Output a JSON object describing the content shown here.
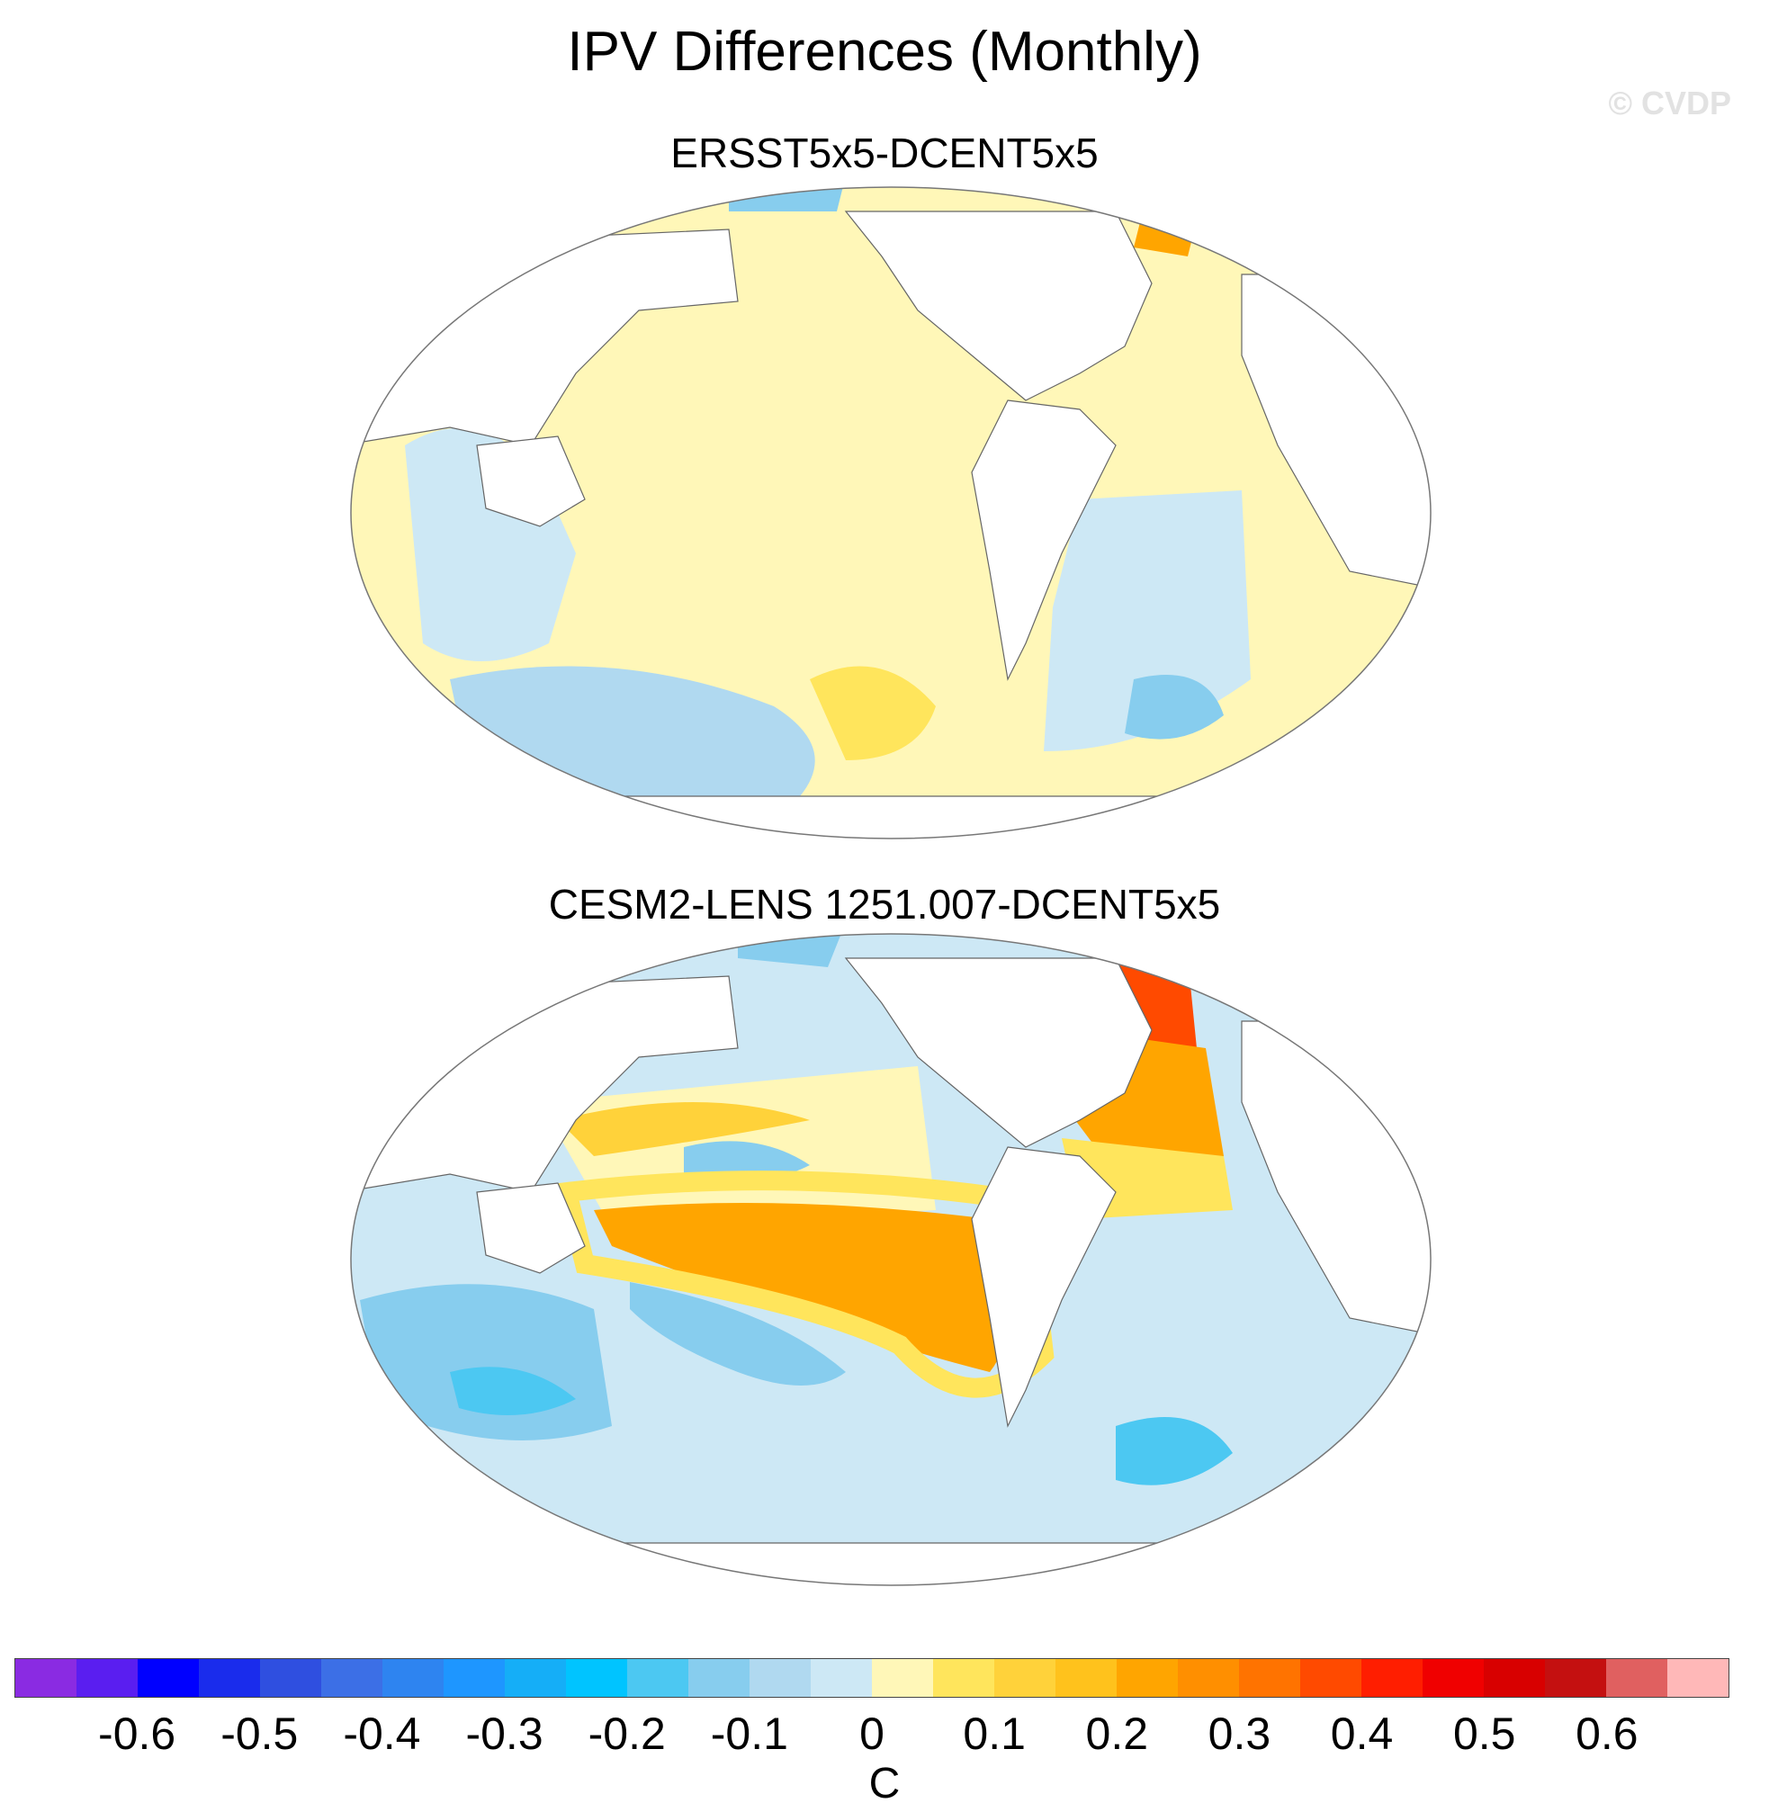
{
  "title": "IPV Differences (Monthly)",
  "watermark": "© CVDP",
  "panels": [
    {
      "title": "ERSST5x5-DCENT5x5"
    },
    {
      "title": "CESM2-LENS 1251.007-DCENT5x5"
    }
  ],
  "colorbar": {
    "unit": "C",
    "colors": [
      "#8a2be2",
      "#5a1ef0",
      "#0000ff",
      "#1a2cec",
      "#2f4fe0",
      "#3c6fe6",
      "#2e84f0",
      "#1e96ff",
      "#15aef7",
      "#00c4ff",
      "#4cc8f2",
      "#87cdee",
      "#b0d9f0",
      "#cde8f5",
      "#fff7b8",
      "#ffe55c",
      "#ffd23a",
      "#ffc21c",
      "#ffa500",
      "#ff8f00",
      "#ff7300",
      "#ff4a00",
      "#ff1e00",
      "#f00000",
      "#d80000",
      "#c41010",
      "#e06060",
      "#ffb8b8"
    ],
    "tick_labels": [
      "-0.6",
      "-0.5",
      "-0.4",
      "-0.3",
      "-0.2",
      "-0.1",
      "0",
      "0.1",
      "0.2",
      "0.3",
      "0.4",
      "0.5",
      "0.6"
    ]
  }
}
